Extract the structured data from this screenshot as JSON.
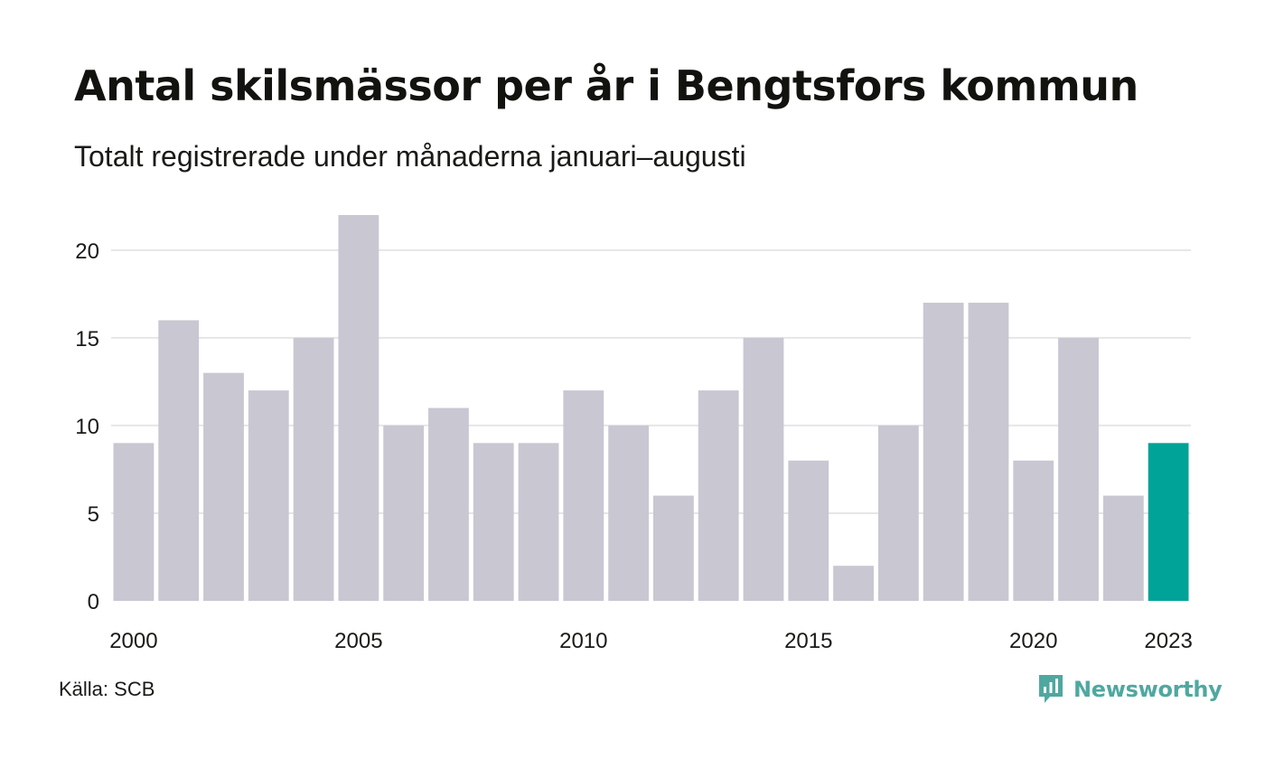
{
  "title": "Antal skilsmässor per år i Bengtsfors kommun",
  "subtitle": "Totalt registrerade under månaderna januari–augusti",
  "source": "Källa: SCB",
  "brand": {
    "name": "Newsworthy",
    "icon": "newsworthy-logo-icon",
    "color": "#4fa8a0"
  },
  "colors": {
    "bar": "#c8c7d2",
    "highlight": "#00a397",
    "grid": "#e6e6e9"
  },
  "chart_data": {
    "type": "bar",
    "title": "Antal skilsmässor per år i Bengtsfors kommun",
    "subtitle": "Totalt registrerade under månaderna januari–augusti",
    "xlabel": "",
    "ylabel": "",
    "categories": [
      2000,
      2001,
      2002,
      2003,
      2004,
      2005,
      2006,
      2007,
      2008,
      2009,
      2010,
      2011,
      2012,
      2013,
      2014,
      2015,
      2016,
      2017,
      2018,
      2019,
      2020,
      2021,
      2022,
      2023
    ],
    "values": [
      9,
      16,
      13,
      12,
      15,
      22,
      10,
      11,
      9,
      9,
      12,
      10,
      6,
      12,
      15,
      8,
      2,
      10,
      17,
      17,
      8,
      15,
      6,
      9
    ],
    "highlight_category": 2023,
    "ylim": [
      0,
      22
    ],
    "yticks": [
      0,
      5,
      10,
      15,
      20
    ],
    "xtick_labels": [
      "2000",
      "2005",
      "2010",
      "2015",
      "2020",
      "2023"
    ],
    "grid": true,
    "legend": "none"
  }
}
